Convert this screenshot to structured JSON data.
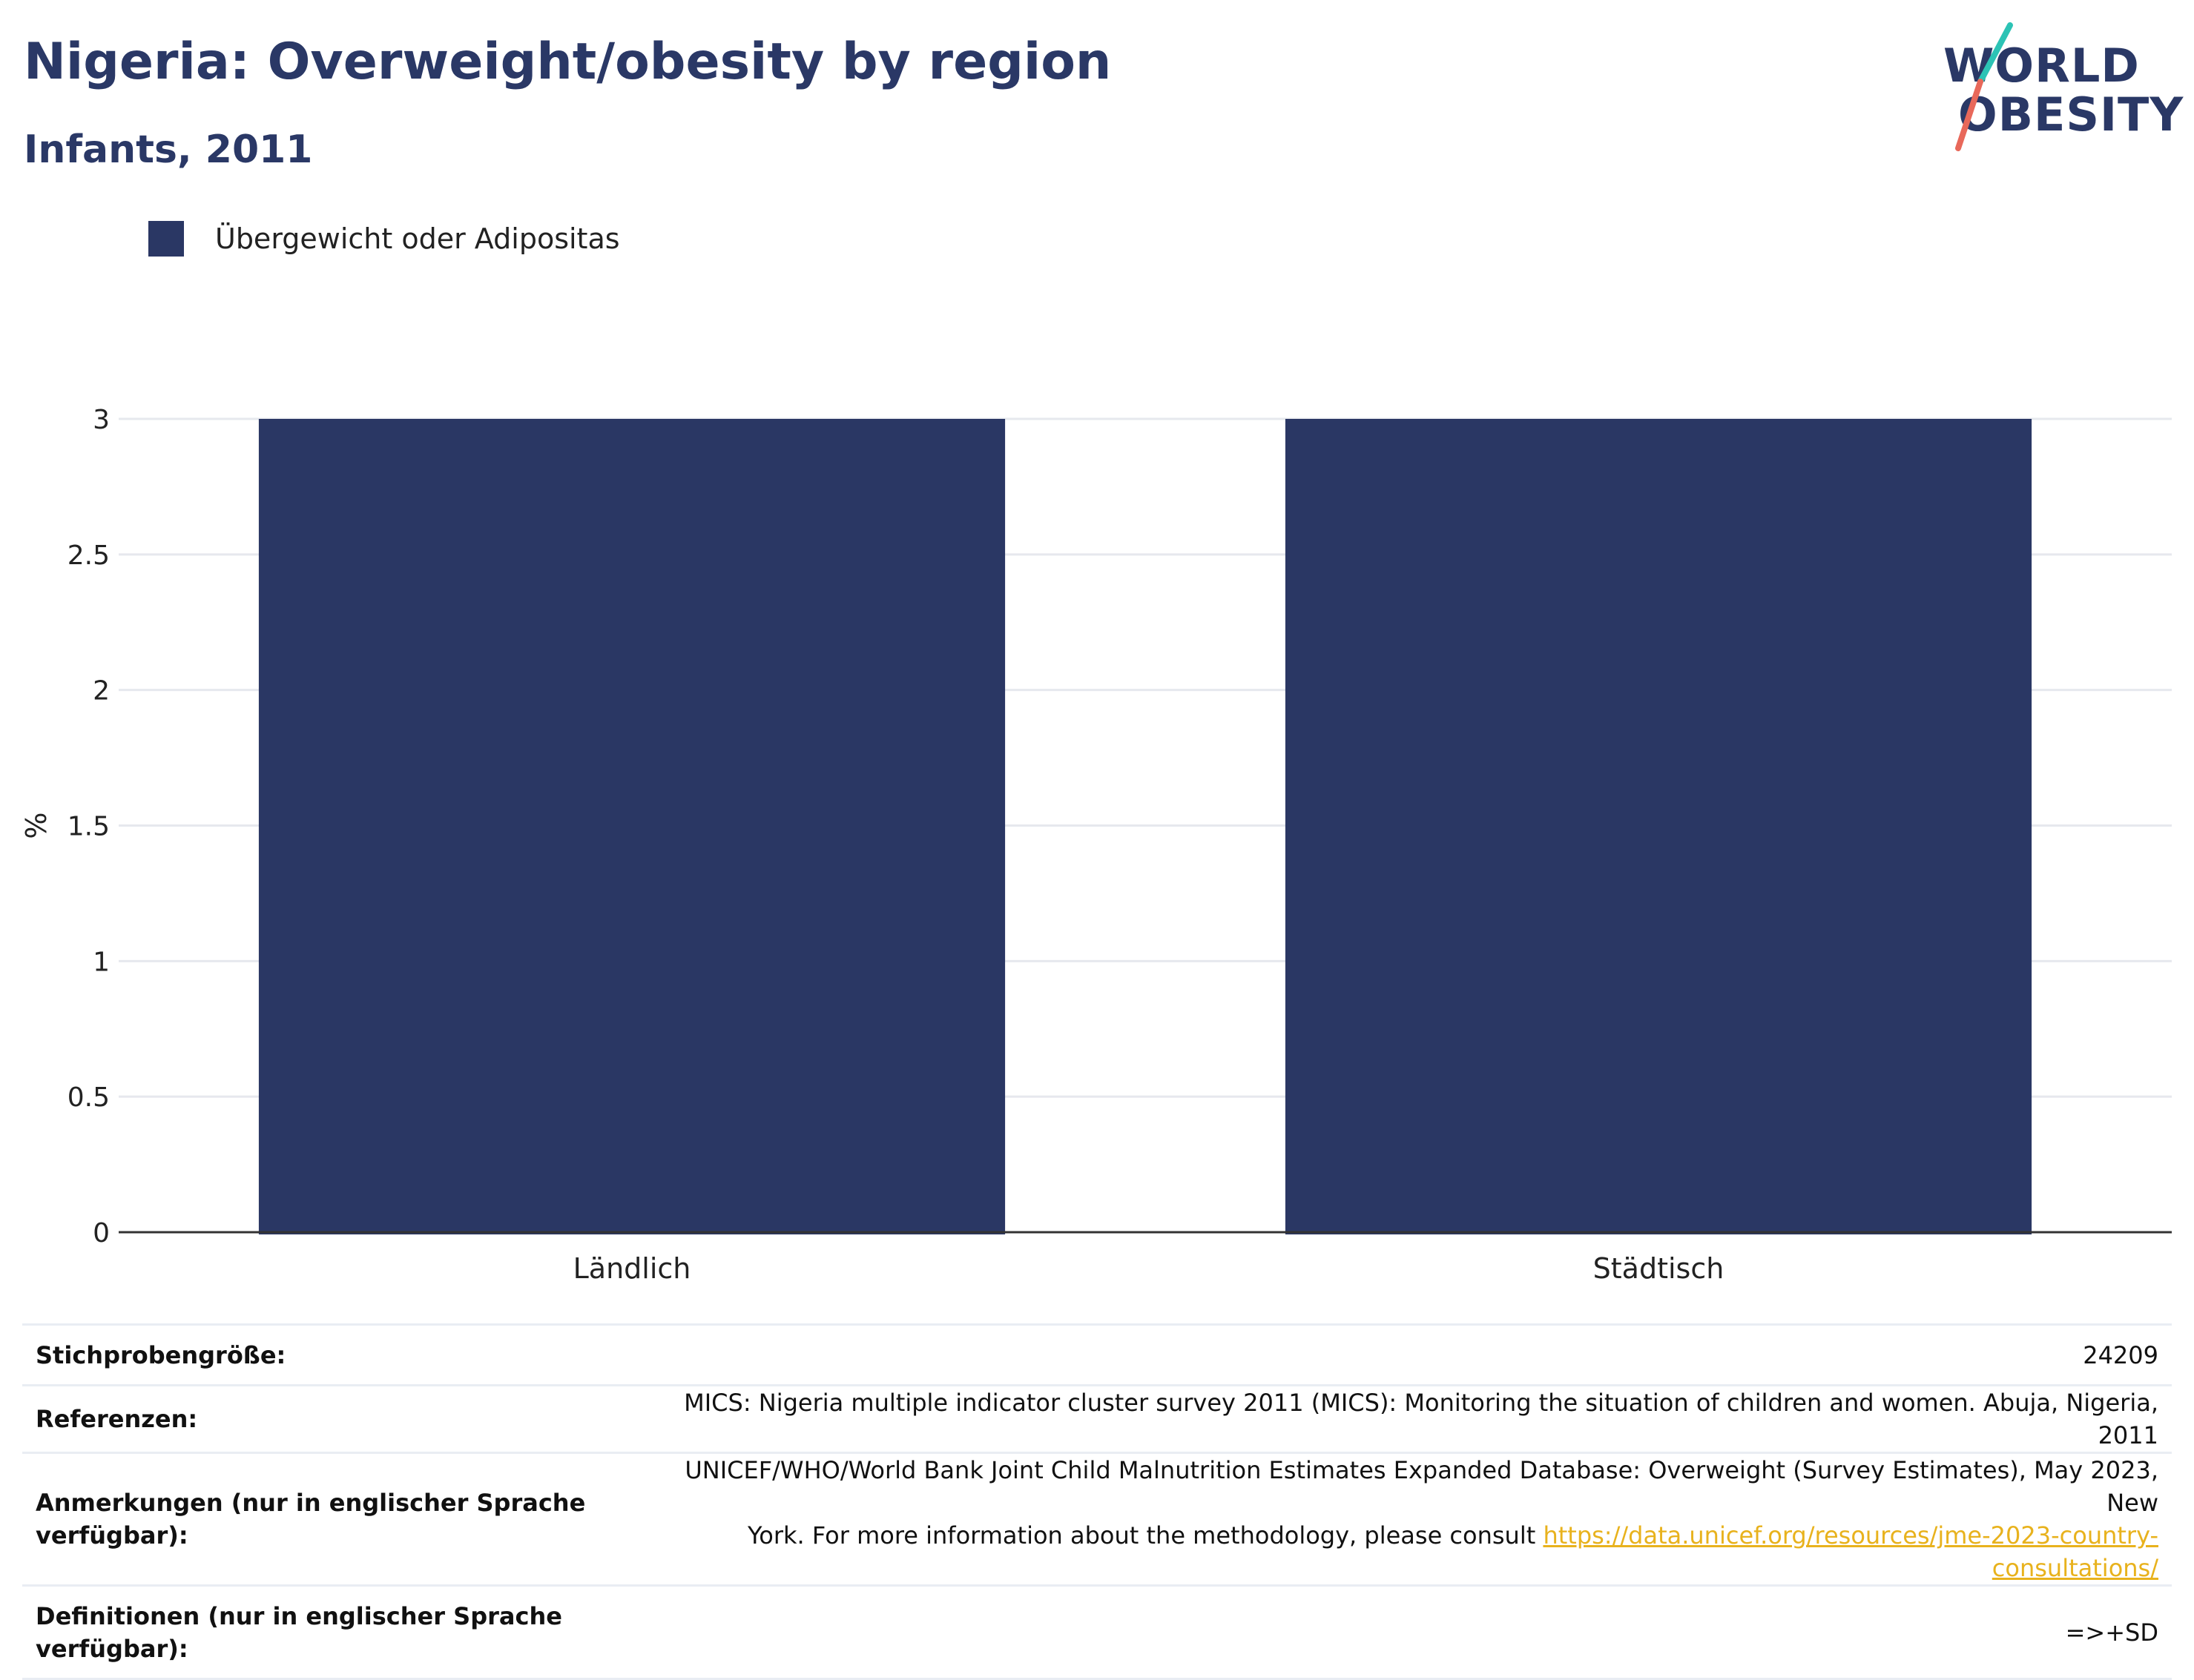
{
  "header": {
    "title": "Nigeria: Overweight/obesity by region",
    "subtitle": "Infants, 2011"
  },
  "logo": {
    "line1": "WORLD",
    "line2": "OBESITY",
    "colors": {
      "text": "#2a3866",
      "slash_top": "#2cc3b5",
      "slash_bottom": "#e8685a"
    }
  },
  "legend": {
    "label": "Übergewicht oder Adipositas"
  },
  "chart_data": {
    "type": "bar",
    "categories": [
      "Ländlich",
      "Städtisch"
    ],
    "series": [
      {
        "name": "Übergewicht oder Adipositas",
        "values": [
          3.0,
          3.0
        ],
        "color": "#2a3764"
      }
    ],
    "ylabel": "%",
    "ylim": [
      0,
      3
    ],
    "yticks": [
      0,
      0.5,
      1,
      1.5,
      2,
      2.5,
      3
    ],
    "ytick_labels": [
      "0",
      "0.5",
      "1",
      "1.5",
      "2",
      "2.5",
      "3"
    ],
    "grid": true,
    "legend_position": "top-left"
  },
  "info_table": {
    "sample_size_label": "Stichprobengröße:",
    "sample_size_value": "24209",
    "references_label": "Referenzen:",
    "references_value": "MICS: Nigeria multiple indicator cluster survey 2011 (MICS): Monitoring the situation of children and women. Abuja, Nigeria, 2011",
    "notes_label_1": "Anmerkungen (nur in englischer Sprache",
    "notes_label_2": "verfügbar):",
    "notes_value_1": "UNICEF/WHO/World Bank Joint Child Malnutrition Estimates Expanded Database: Overweight (Survey Estimates), May 2023, New",
    "notes_value_2": "York. For more information about the methodology, please consult ",
    "notes_link": "https://data.unicef.org/resources/jme-2023-country-consultations/",
    "definitions_label_1": "Definitionen (nur in englischer Sprache",
    "definitions_label_2": "verfügbar):",
    "definitions_value": "=>+SD"
  }
}
